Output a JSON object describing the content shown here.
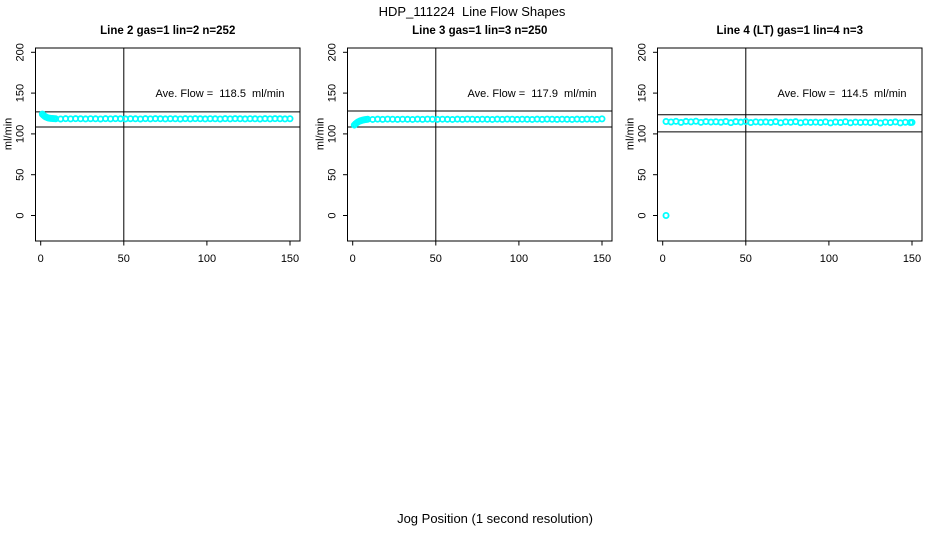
{
  "figure": {
    "title": "HDP_111224  Line Flow Shapes",
    "xlabel": "Jog Position (1 second resolution)",
    "point_color": "#00FFFF",
    "line_color": "#000000",
    "background": "#FFFFFF"
  },
  "chart_data": [
    {
      "type": "scatter",
      "title": "Line 2 gas=1 lin=2 n=252",
      "line_label": "Line 2",
      "gas": 1,
      "lin": 2,
      "n": 252,
      "ylabel": "ml/min",
      "annotation": "Ave. Flow =  118.5  ml/min",
      "ave_flow_ml_min": 118.5,
      "x_ticks": [
        0,
        50,
        100,
        150
      ],
      "y_ticks": [
        0,
        50,
        100,
        150,
        200
      ],
      "xlim": [
        0,
        155
      ],
      "ylim": [
        -30,
        205
      ],
      "vline_x": 50,
      "hlines": [
        127,
        108.5
      ],
      "points": [
        [
          1,
          124.2
        ],
        [
          1.7,
          122.8
        ],
        [
          2.5,
          121.5
        ],
        [
          3.3,
          120.5
        ],
        [
          4.2,
          119.8
        ],
        [
          5,
          119.3
        ],
        [
          6,
          119.0
        ],
        [
          7,
          118.8
        ],
        [
          8,
          118.7
        ],
        [
          9,
          118.5
        ],
        [
          12,
          118.3
        ],
        [
          15,
          118.65
        ],
        [
          18,
          118.4
        ],
        [
          21,
          118.7
        ],
        [
          24,
          118.55
        ],
        [
          27,
          118.35
        ],
        [
          30,
          118.6
        ],
        [
          33,
          118.5
        ],
        [
          36,
          118.3
        ],
        [
          39,
          118.65
        ],
        [
          42,
          118.4
        ],
        [
          45,
          118.7
        ],
        [
          48,
          118.55
        ],
        [
          51,
          118.35
        ],
        [
          54,
          118.6
        ],
        [
          57,
          118.5
        ],
        [
          60,
          118.3
        ],
        [
          63,
          118.65
        ],
        [
          66,
          118.4
        ],
        [
          69,
          118.7
        ],
        [
          72,
          118.55
        ],
        [
          75,
          118.35
        ],
        [
          78,
          118.6
        ],
        [
          81,
          118.5
        ],
        [
          84,
          118.3
        ],
        [
          87,
          118.65
        ],
        [
          90,
          118.4
        ],
        [
          93,
          118.7
        ],
        [
          96,
          118.55
        ],
        [
          99,
          118.35
        ],
        [
          102,
          118.6
        ],
        [
          105,
          118.5
        ],
        [
          108,
          118.3
        ],
        [
          111,
          118.65
        ],
        [
          114,
          118.4
        ],
        [
          117,
          118.7
        ],
        [
          120,
          118.55
        ],
        [
          123,
          118.35
        ],
        [
          126,
          118.6
        ],
        [
          129,
          118.5
        ],
        [
          132,
          118.3
        ],
        [
          135,
          118.65
        ],
        [
          138,
          118.4
        ],
        [
          141,
          118.7
        ],
        [
          144,
          118.55
        ],
        [
          147,
          118.35
        ],
        [
          150,
          118.6
        ]
      ]
    },
    {
      "type": "scatter",
      "title": "Line 3 gas=1 lin=3 n=250",
      "line_label": "Line 3",
      "gas": 1,
      "lin": 3,
      "n": 250,
      "ylabel": "ml/min",
      "annotation": "Ave. Flow =  117.9  ml/min",
      "ave_flow_ml_min": 117.9,
      "x_ticks": [
        0,
        50,
        100,
        150
      ],
      "y_ticks": [
        0,
        50,
        100,
        150,
        200
      ],
      "xlim": [
        0,
        155
      ],
      "ylim": [
        -30,
        205
      ],
      "vline_x": 50,
      "hlines": [
        128,
        108.5
      ],
      "points": [
        [
          1,
          110.8
        ],
        [
          1.7,
          112.3
        ],
        [
          2.5,
          113.6
        ],
        [
          3.3,
          114.8
        ],
        [
          4.2,
          115.7
        ],
        [
          5,
          116.3
        ],
        [
          6,
          116.9
        ],
        [
          7,
          117.3
        ],
        [
          8,
          117.6
        ],
        [
          9,
          117.9
        ],
        [
          12,
          117.7
        ],
        [
          15,
          118.05
        ],
        [
          18,
          117.8
        ],
        [
          21,
          118.1
        ],
        [
          24,
          117.95
        ],
        [
          27,
          117.75
        ],
        [
          30,
          118.0
        ],
        [
          33,
          117.9
        ],
        [
          36,
          117.7
        ],
        [
          39,
          118.05
        ],
        [
          42,
          117.8
        ],
        [
          45,
          118.1
        ],
        [
          48,
          117.95
        ],
        [
          51,
          117.75
        ],
        [
          54,
          118.0
        ],
        [
          57,
          117.9
        ],
        [
          60,
          117.7
        ],
        [
          63,
          118.05
        ],
        [
          66,
          117.8
        ],
        [
          69,
          118.1
        ],
        [
          72,
          117.95
        ],
        [
          75,
          117.75
        ],
        [
          78,
          118.0
        ],
        [
          81,
          117.9
        ],
        [
          84,
          117.7
        ],
        [
          87,
          118.05
        ],
        [
          90,
          117.8
        ],
        [
          93,
          118.1
        ],
        [
          96,
          117.95
        ],
        [
          99,
          117.75
        ],
        [
          102,
          118.0
        ],
        [
          105,
          117.9
        ],
        [
          108,
          117.7
        ],
        [
          111,
          118.05
        ],
        [
          114,
          117.8
        ],
        [
          117,
          118.1
        ],
        [
          120,
          117.95
        ],
        [
          123,
          117.75
        ],
        [
          126,
          118.0
        ],
        [
          129,
          117.9
        ],
        [
          132,
          117.7
        ],
        [
          135,
          118.05
        ],
        [
          138,
          117.8
        ],
        [
          141,
          118.1
        ],
        [
          144,
          117.95
        ],
        [
          147,
          117.75
        ],
        [
          150,
          118.4
        ]
      ]
    },
    {
      "type": "scatter",
      "title": "Line 4 (LT) gas=1 lin=4 n=3",
      "line_label": "Line 4 (LT)",
      "gas": 1,
      "lin": 4,
      "n": 3,
      "ylabel": "ml/min",
      "annotation": "Ave. Flow =  114.5  ml/min",
      "ave_flow_ml_min": 114.5,
      "x_ticks": [
        0,
        50,
        100,
        150
      ],
      "y_ticks": [
        0,
        50,
        100,
        150,
        200
      ],
      "xlim": [
        0,
        155
      ],
      "ylim": [
        -30,
        205
      ],
      "vline_x": 50,
      "hlines": [
        123.5,
        102.5
      ],
      "points": [
        [
          2,
          0
        ],
        [
          2,
          115.2
        ],
        [
          5,
          114.6
        ],
        [
          8,
          115.4
        ],
        [
          11,
          114.1
        ],
        [
          14,
          115.3
        ],
        [
          17,
          114.75
        ],
        [
          20,
          115.5
        ],
        [
          23,
          114.2
        ],
        [
          26,
          115.1
        ],
        [
          29,
          114.5
        ],
        [
          32,
          114.9
        ],
        [
          35,
          114.3
        ],
        [
          38,
          115.2
        ],
        [
          41,
          113.8
        ],
        [
          44,
          115.0
        ],
        [
          47,
          114.4
        ],
        [
          50,
          115.2
        ],
        [
          53,
          113.9
        ],
        [
          56,
          114.8
        ],
        [
          59,
          114.3
        ],
        [
          62,
          114.7
        ],
        [
          65,
          114.1
        ],
        [
          68,
          115.0
        ],
        [
          71,
          113.7
        ],
        [
          74,
          114.8
        ],
        [
          77,
          114.25
        ],
        [
          80,
          115.0
        ],
        [
          83,
          113.7
        ],
        [
          86,
          114.6
        ],
        [
          89,
          114.1
        ],
        [
          92,
          114.5
        ],
        [
          95,
          113.9
        ],
        [
          98,
          114.8
        ],
        [
          101,
          113.5
        ],
        [
          104,
          114.6
        ],
        [
          107,
          114.0
        ],
        [
          110,
          114.9
        ],
        [
          113,
          113.6
        ],
        [
          116,
          114.5
        ],
        [
          119,
          114.0
        ],
        [
          122,
          114.4
        ],
        [
          125,
          113.8
        ],
        [
          128,
          114.7
        ],
        [
          131,
          113.4
        ],
        [
          134,
          114.5
        ],
        [
          137,
          113.9
        ],
        [
          140,
          114.7
        ],
        [
          143,
          113.5
        ],
        [
          146,
          114.3
        ],
        [
          149,
          113.9
        ],
        [
          150,
          114.1
        ]
      ]
    }
  ]
}
